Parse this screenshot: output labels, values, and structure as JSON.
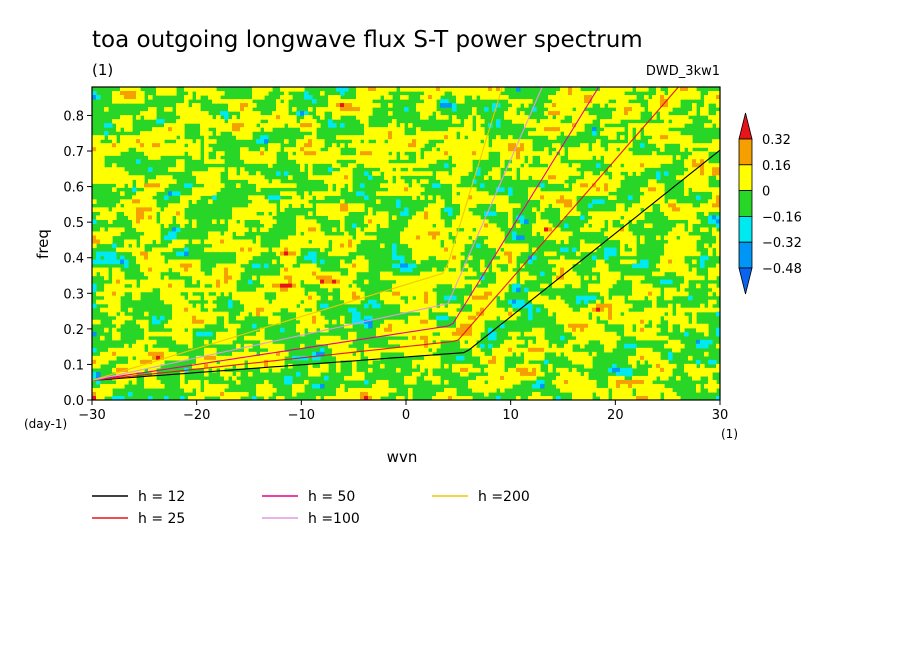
{
  "chart_data": {
    "type": "heatmap",
    "title": "toa outgoing longwave flux S-T power spectrum",
    "subtitle_left": "(1)",
    "subtitle_right": "DWD_3kw1",
    "xlabel": "wvn",
    "ylabel": "freq",
    "x_unit": "(1)",
    "y_unit": "(day-1)",
    "xlim": [
      -30,
      30
    ],
    "ylim": [
      0,
      0.88
    ],
    "xticks": [
      -30,
      -20,
      -10,
      0,
      10,
      20,
      30
    ],
    "xtick_labels": [
      "−30",
      "−20",
      "−10",
      "0",
      "10",
      "20",
      "30"
    ],
    "yticks": [
      0,
      0.1,
      0.2,
      0.3,
      0.4,
      0.5,
      0.6,
      0.7,
      0.8
    ],
    "ytick_labels": [
      "0.0",
      "0.1",
      "0.2",
      "0.3",
      "0.4",
      "0.5",
      "0.6",
      "0.7",
      "0.8"
    ],
    "colorbar": {
      "levels": [
        "0.32",
        "0.16",
        "0",
        "−0.16",
        "−0.32",
        "−0.48"
      ],
      "colors": [
        "#e8141c",
        "#f5a000",
        "#ffff00",
        "#27d627",
        "#00e8f0",
        "#0096f5",
        "#0a64f0"
      ]
    },
    "dispersion_curves": [
      {
        "label": "h = 12",
        "h": 12,
        "color": "#000000"
      },
      {
        "label": "h = 25",
        "h": 25,
        "color": "#e8141c"
      },
      {
        "label": "h = 50",
        "h": 50,
        "color": "#e6008c"
      },
      {
        "label": "h =100",
        "h": 100,
        "color": "#e09ce0"
      },
      {
        "label": "h =200",
        "h": 200,
        "color": "#f0c800"
      }
    ]
  }
}
